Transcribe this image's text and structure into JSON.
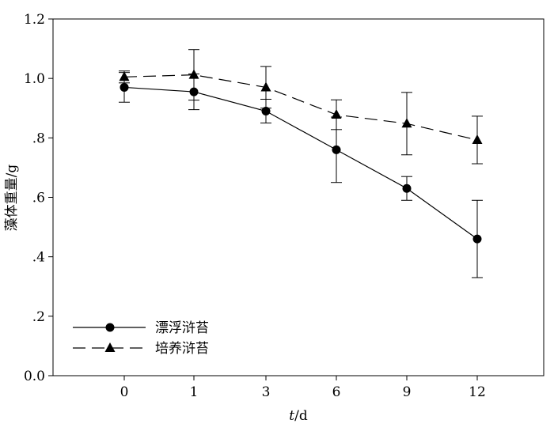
{
  "chart_data": {
    "type": "line",
    "xlabel_italic": "t",
    "xlabel_rest": "/d",
    "ylabel": "藻体重量/g",
    "categories": [
      "0",
      "1",
      "3",
      "6",
      "9",
      "12"
    ],
    "ylim": [
      0,
      1.2
    ],
    "yticks": [
      {
        "value": 0.0,
        "label": "0.0"
      },
      {
        "value": 0.2,
        "label": ".2"
      },
      {
        "value": 0.4,
        "label": ".4"
      },
      {
        "value": 0.6,
        "label": ".6"
      },
      {
        "value": 0.8,
        "label": ".8"
      },
      {
        "value": 1.0,
        "label": "1.0"
      },
      {
        "value": 1.2,
        "label": "1.2"
      }
    ],
    "grid": false,
    "legend_position": "bottom-left",
    "series": [
      {
        "name": "漂浮浒苔",
        "marker": "circle",
        "line": "solid",
        "values": [
          0.97,
          0.955,
          0.89,
          0.76,
          0.63,
          0.46
        ],
        "errors": [
          0.05,
          0.06,
          0.04,
          0.11,
          0.04,
          0.13
        ]
      },
      {
        "name": "培养浒苔",
        "marker": "triangle",
        "line": "dashed",
        "values": [
          1.005,
          1.012,
          0.97,
          0.878,
          0.848,
          0.793
        ],
        "errors": [
          0.02,
          0.085,
          0.07,
          0.05,
          0.105,
          0.08
        ]
      }
    ]
  }
}
